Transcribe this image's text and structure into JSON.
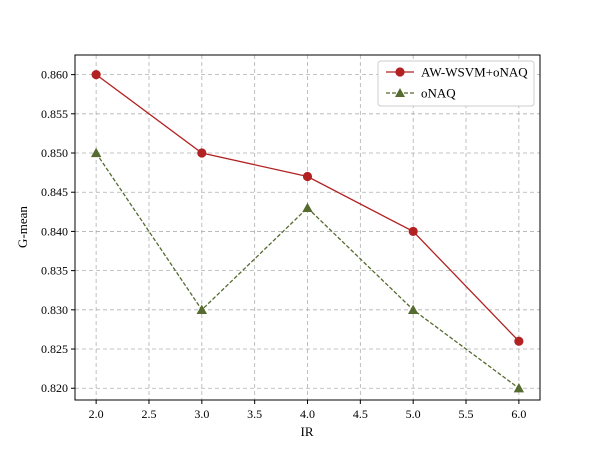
{
  "chart_data": {
    "type": "line",
    "xlabel": "IR",
    "ylabel": "G-mean",
    "xlim": [
      1.8,
      6.2
    ],
    "ylim": [
      0.8185,
      0.8625
    ],
    "xticks": [
      2.0,
      2.5,
      3.0,
      3.5,
      4.0,
      4.5,
      5.0,
      5.5,
      6.0
    ],
    "yticks": [
      0.82,
      0.825,
      0.83,
      0.835,
      0.84,
      0.845,
      0.85,
      0.855,
      0.86
    ],
    "xtick_labels": [
      "2.0",
      "2.5",
      "3.0",
      "3.5",
      "4.0",
      "4.5",
      "5.0",
      "5.5",
      "6.0"
    ],
    "ytick_labels": [
      "0.820",
      "0.825",
      "0.830",
      "0.835",
      "0.840",
      "0.845",
      "0.850",
      "0.855",
      "0.860"
    ],
    "grid": true,
    "legend_position": "top-right",
    "x": [
      2.0,
      3.0,
      4.0,
      5.0,
      6.0
    ],
    "series": [
      {
        "name": "AW-WSVM+oNAQ",
        "values": [
          0.86,
          0.85,
          0.847,
          0.84,
          0.826
        ],
        "color": "#b22222",
        "line_style": "solid",
        "marker": "circle"
      },
      {
        "name": "oNAQ",
        "values": [
          0.85,
          0.83,
          0.843,
          0.83,
          0.82
        ],
        "color": "#556b2f",
        "line_style": "dashed",
        "marker": "triangle"
      }
    ]
  }
}
